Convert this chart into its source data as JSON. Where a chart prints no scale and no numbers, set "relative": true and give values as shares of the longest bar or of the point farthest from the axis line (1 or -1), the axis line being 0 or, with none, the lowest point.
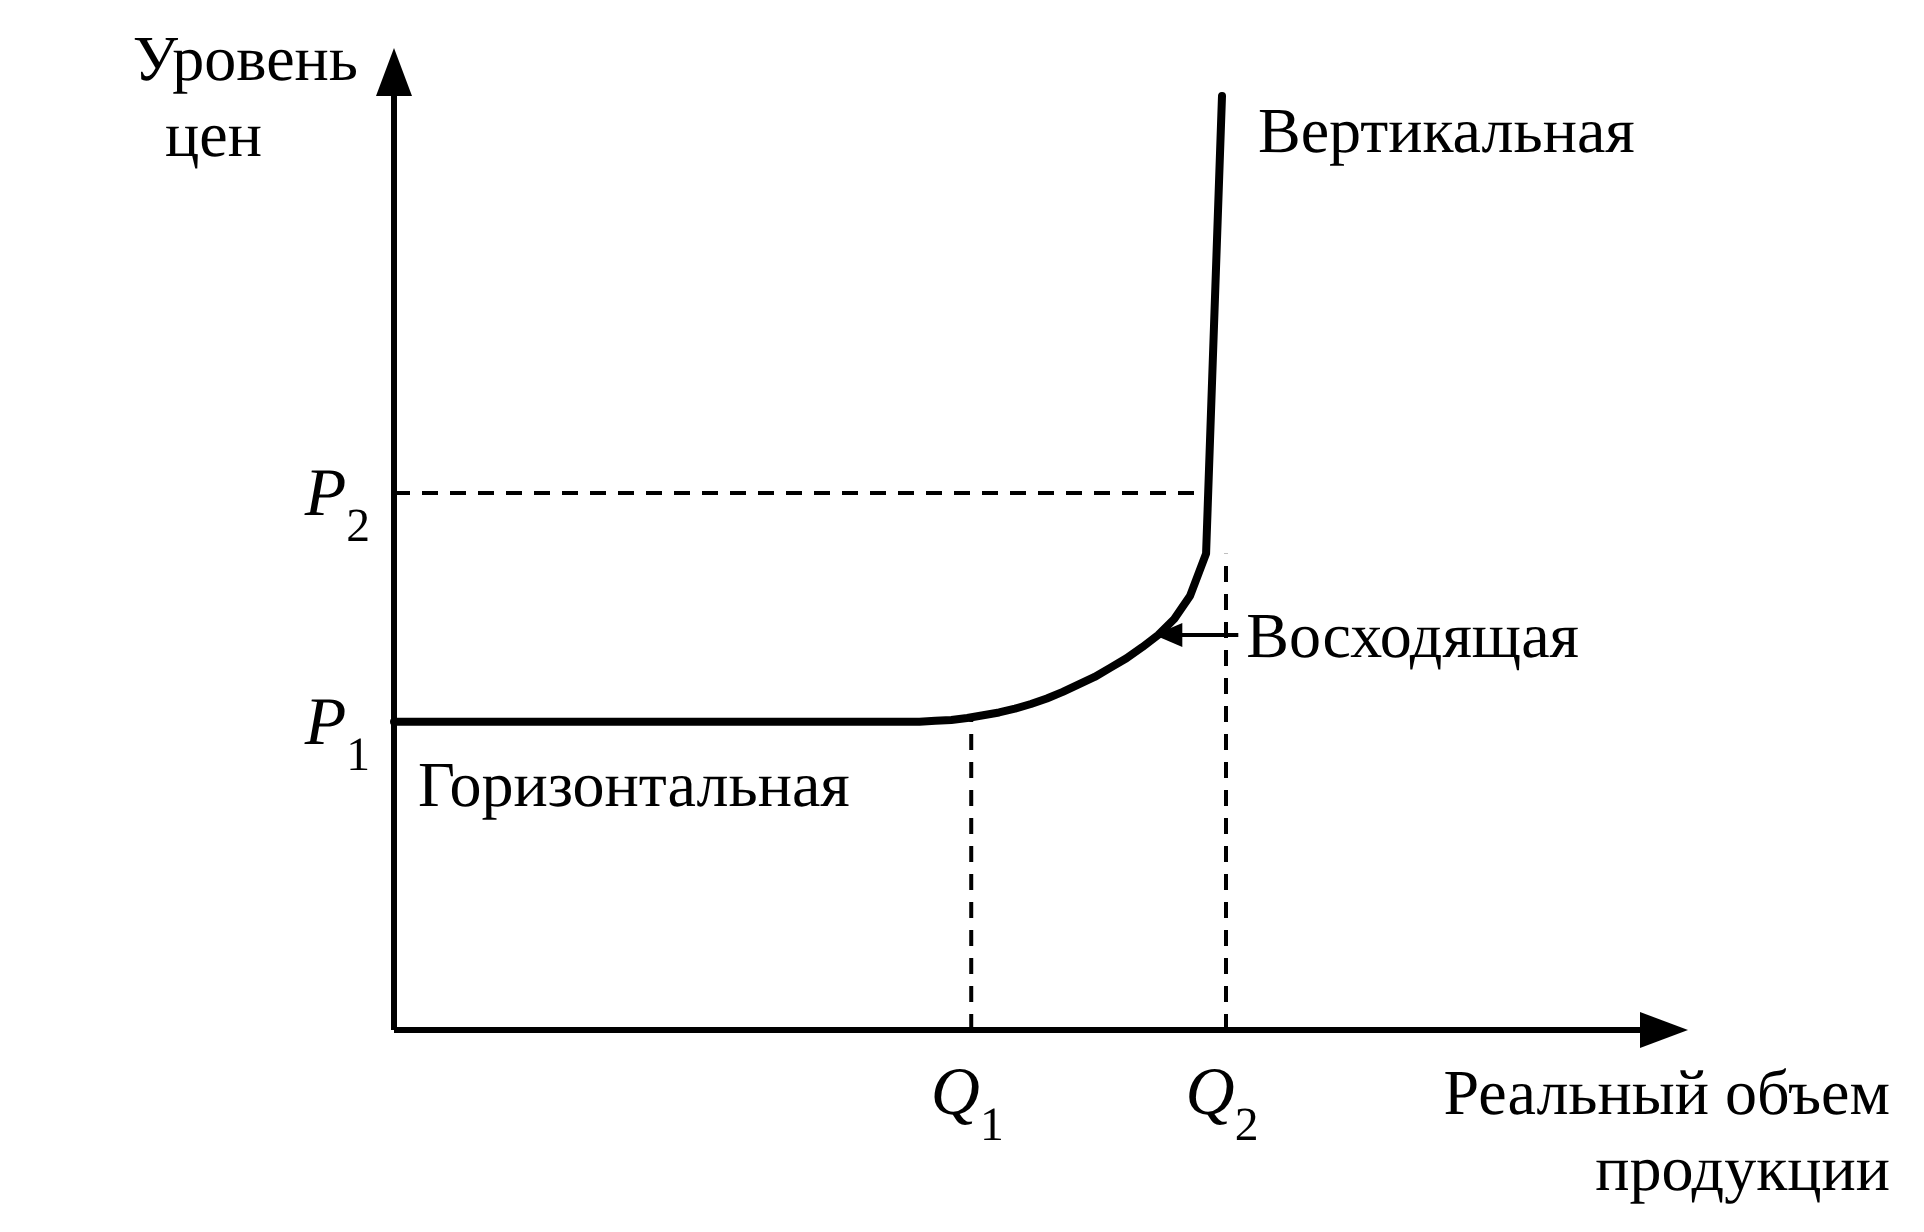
{
  "chart_data": {
    "type": "line",
    "xlabel": "Реальный объем продукции",
    "ylabel": "Уровень цен",
    "relative": true,
    "categories": [
      null,
      null,
      null,
      null,
      null,
      null,
      null,
      null,
      null,
      null,
      null,
      null,
      null,
      null,
      null,
      null,
      null,
      null,
      null,
      null,
      null,
      null,
      null,
      null,
      null,
      null,
      null,
      null,
      null,
      null,
      null,
      null,
      null,
      null,
      null,
      null,
      "Q$_{1}$",
      null,
      null,
      null,
      null,
      null,
      null,
      null,
      null,
      null,
      null,
      null,
      null,
      null,
      null,
      null,
      "Q$_{2}$"
    ],
    "series": [
      {
        "color": "#000000",
        "values": [
          0.33,
          0.33,
          0.33,
          0.33,
          0.33,
          0.33,
          0.33,
          0.33,
          0.33,
          0.33,
          0.33,
          0.33,
          0.33,
          0.33,
          0.33,
          0.33,
          0.33,
          0.33,
          0.33,
          0.33,
          0.33,
          0.33,
          0.33,
          0.33,
          0.33,
          0.33,
          0.33,
          0.33,
          0.33,
          0.33,
          0.33,
          0.33,
          0.33,
          0.33,
          0.331,
          0.332,
          0.334,
          0.337,
          0.34,
          0.344,
          0.349,
          0.355,
          0.362,
          0.37,
          0.378,
          0.388,
          0.398,
          0.41,
          0.423,
          0.44,
          0.465,
          0.51,
          1.0
        ]
      }
    ],
    "ref_lines": [
      {
        "axis": "y",
        "value": 0.575,
        "label": "P$_{2}$",
        "line_style": "dashed"
      },
      {
        "axis": "x",
        "value": "Q$_{1}$",
        "line_style": "dashed"
      },
      {
        "axis": "x",
        "value": "Q$_{2}$",
        "line_style": "dashed"
      }
    ],
    "annotations": [
      "Вертикальная",
      "Восходящая",
      "Горизонтальная",
      "P$_{1}$"
    ],
    "marker": "none",
    "line_style": "solid"
  }
}
